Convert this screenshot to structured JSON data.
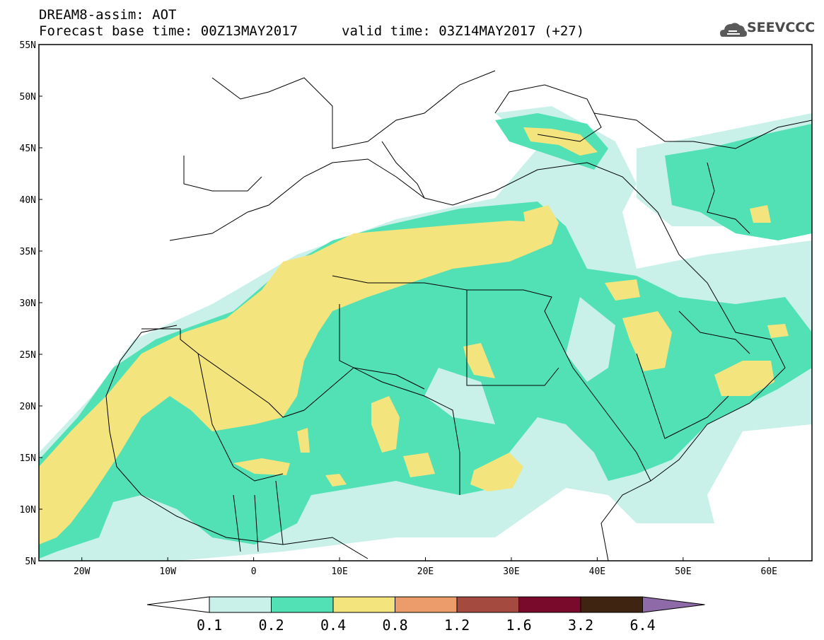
{
  "header": {
    "line1": "DREAM8-assim: AOT",
    "line2": "Forecast base time: 00Z13MAY2017",
    "line3": "valid time: 03Z14MAY2017 (+27)"
  },
  "logo": {
    "text": "SEEVCCC",
    "icon": "cloud-icon"
  },
  "map": {
    "lon_range": [
      -25,
      65
    ],
    "lat_range": [
      5,
      55
    ],
    "lat_labels": [
      "55N",
      "50N",
      "45N",
      "40N",
      "35N",
      "30N",
      "25N",
      "20N",
      "15N",
      "10N",
      "5N"
    ],
    "lon_labels": [
      "20W",
      "10W",
      "0",
      "10E",
      "20E",
      "30E",
      "40E",
      "50E",
      "60E"
    ]
  },
  "colorbar": {
    "colors": [
      "#ffffff",
      "#c9f1ea",
      "#52e0b5",
      "#f3e47d",
      "#ec9b6b",
      "#a44a3f",
      "#7a0a2b",
      "#3f2412",
      "#8f6aa8"
    ],
    "labels": [
      "0.1",
      "0.2",
      "0.4",
      "0.8",
      "1.2",
      "1.6",
      "3.2",
      "6.4"
    ]
  }
}
